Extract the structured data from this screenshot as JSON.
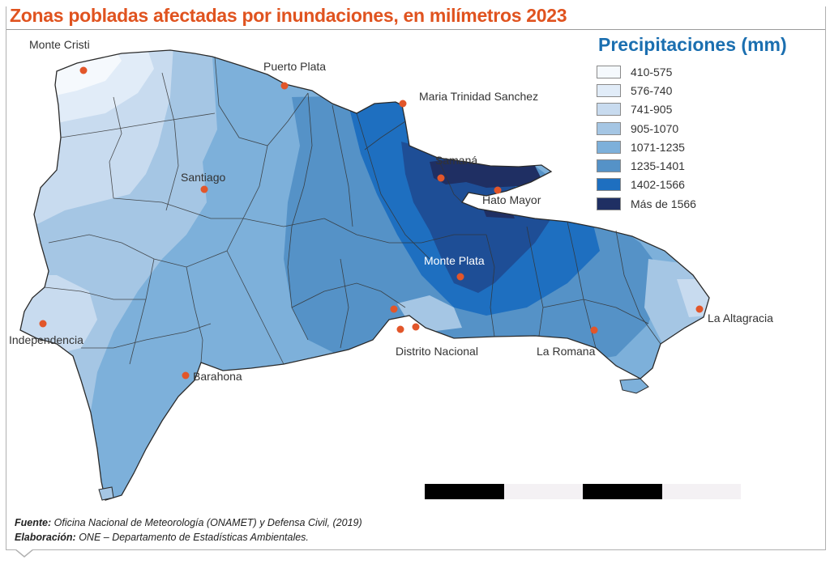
{
  "title": "Zonas pobladas afectadas por inundaciones, en milímetros 2023",
  "legend": {
    "title": "Precipitaciones (mm)",
    "items": [
      {
        "label": "410-575",
        "color": "#f5f9fd"
      },
      {
        "label": "576-740",
        "color": "#e1ecf8"
      },
      {
        "label": "741-905",
        "color": "#c8dbef"
      },
      {
        "label": "905-1070",
        "color": "#a5c6e4"
      },
      {
        "label": "1071-1235",
        "color": "#7db0da"
      },
      {
        "label": "1235-1401",
        "color": "#5592c7"
      },
      {
        "label": "1402-1566",
        "color": "#1e6fc0"
      },
      {
        "label": "Más de 1566",
        "color": "#1e4e96"
      },
      {
        "label": "",
        "color": "#1f2f63"
      }
    ]
  },
  "cities": [
    {
      "name": "Monte Cristi"
    },
    {
      "name": "Puerto Plata"
    },
    {
      "name": "Maria Trinidad Sanchez"
    },
    {
      "name": "Samaná"
    },
    {
      "name": "Santiago"
    },
    {
      "name": "Hato Mayor"
    },
    {
      "name": "Monte Plata"
    },
    {
      "name": "La Altagracia"
    },
    {
      "name": "Independencia"
    },
    {
      "name": "Distrito Nacional"
    },
    {
      "name": "La Romana"
    },
    {
      "name": "Barahona"
    }
  ],
  "source": {
    "fuente_label": "Fuente:",
    "fuente_text": "Oficina Nacional de Meteorología (ONAMET) y Defensa Civil, (2019)",
    "elaboracion_label": "Elaboración:",
    "elaboracion_text": "ONE – Departamento de Estadísticas Ambientales."
  },
  "colors": {
    "title": "#e0531f",
    "legend_title": "#1b6fb0",
    "city_dot": "#e2562a",
    "scale_dark": "#000000",
    "scale_light": "#f4f1f4"
  }
}
